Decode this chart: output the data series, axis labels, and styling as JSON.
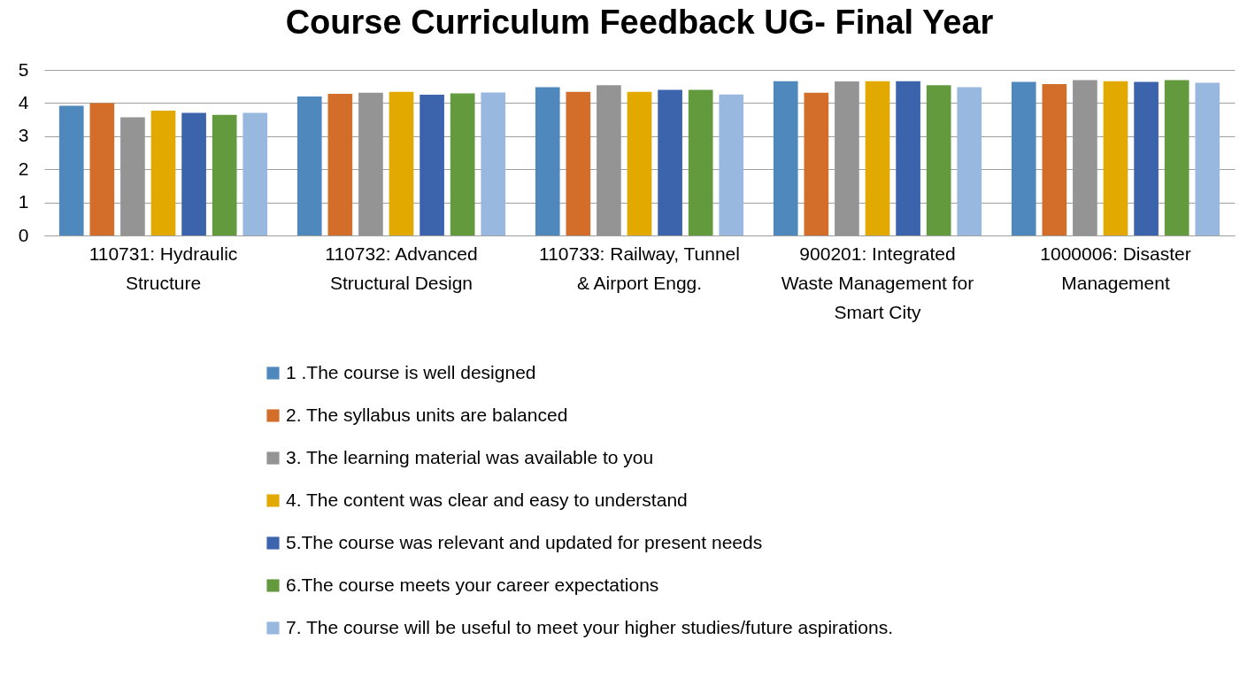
{
  "chart_data": {
    "type": "bar",
    "title": "Course Curriculum Feedback UG- Final Year",
    "categories": [
      "110731: Hydraulic Structure",
      "110732: Advanced Structural Design",
      "110733: Railway, Tunnel & Airport Engg.",
      "900201: Integrated Waste Management for Smart City",
      "1000006: Disaster Management"
    ],
    "series": [
      {
        "name": "1 .The course is well designed",
        "color": "#4e88bd",
        "values": [
          3.92,
          4.2,
          4.48,
          4.66,
          4.64
        ]
      },
      {
        "name": "2. The syllabus units are balanced",
        "color": "#d36e2a",
        "values": [
          4.0,
          4.28,
          4.34,
          4.31,
          4.57
        ]
      },
      {
        "name": "3. The learning material was available to you",
        "color": "#949494",
        "values": [
          3.57,
          4.31,
          4.54,
          4.65,
          4.69
        ]
      },
      {
        "name": "4. The content was clear and easy to understand",
        "color": "#e2a900",
        "values": [
          3.77,
          4.34,
          4.34,
          4.66,
          4.66
        ]
      },
      {
        "name": "5.The course was relevant and updated for present needs",
        "color": "#3b64ad",
        "values": [
          3.7,
          4.25,
          4.4,
          4.66,
          4.64
        ]
      },
      {
        "name": "6.The course meets your career expectations",
        "color": "#639a3e",
        "values": [
          3.64,
          4.29,
          4.4,
          4.54,
          4.69
        ]
      },
      {
        "name": "7. The course will be useful to meet your higher studies/future aspirations.",
        "color": "#98b8e0",
        "values": [
          3.7,
          4.32,
          4.26,
          4.48,
          4.61
        ]
      }
    ],
    "ylim": [
      0,
      5
    ],
    "yticks": [
      0,
      1,
      2,
      3,
      4,
      5
    ],
    "grid": "y",
    "legend": "bottom"
  }
}
